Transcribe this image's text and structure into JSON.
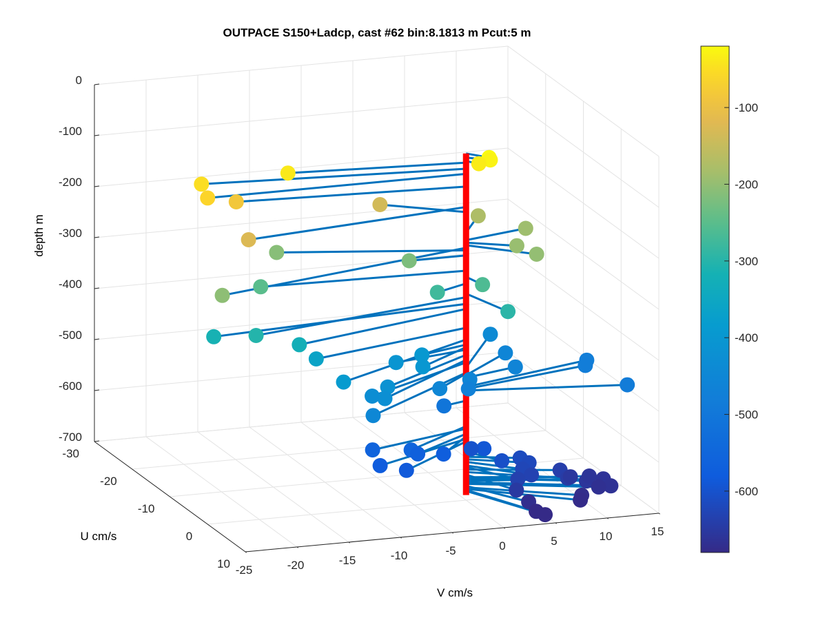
{
  "chart_data": {
    "type": "scatter",
    "subtype": "3d-stem-quiver",
    "title": "OUTPACE S150+Ladcp, cast #62 bin:8.1813 m  Pcut:5 m",
    "xlabel": "V cm/s",
    "ylabel": "U cm/s",
    "zlabel": "depth m",
    "x_ticks": [
      "-25",
      "-20",
      "-15",
      "-10",
      "-5",
      "0",
      "5",
      "10",
      "15"
    ],
    "y_ticks": [
      "-30",
      "-20",
      "-10",
      "0",
      "10"
    ],
    "z_ticks": [
      "0",
      "-100",
      "-200",
      "-300",
      "-400",
      "-500",
      "-600",
      "-700"
    ],
    "xlim": [
      -25,
      15
    ],
    "ylim": [
      -30,
      10
    ],
    "zlim": [
      -700,
      0
    ],
    "grid": true,
    "colorbar": {
      "colormap": "parula",
      "range": [
        -680,
        -20
      ],
      "ticks": [
        "-100",
        "-200",
        "-300",
        "-400",
        "-500",
        "-600"
      ]
    },
    "axis_line_color": "#ff0000",
    "stem_color": "#0072bd",
    "series": [
      {
        "values": [
          {
            "z": -20,
            "v": 1.5,
            "u": 2.0
          },
          {
            "z": -28,
            "v": 1.8,
            "u": 1.5
          },
          {
            "z": -35,
            "v": 0.8,
            "u": 1.2
          },
          {
            "z": -38,
            "v": -16.5,
            "u": -2.0
          },
          {
            "z": -50,
            "v": -24.5,
            "u": -3.0
          },
          {
            "z": -60,
            "v": -25.0,
            "u": 0.0
          },
          {
            "z": -85,
            "v": -21.5,
            "u": -2.0
          },
          {
            "z": -125,
            "v": -22.5,
            "u": 4.0
          },
          {
            "z": -135,
            "v": -6.5,
            "u": -5.0
          },
          {
            "z": -175,
            "v": 3.0,
            "u": -5.0
          },
          {
            "z": -190,
            "v": 6.5,
            "u": -2.0
          },
          {
            "z": -195,
            "v": 4.0,
            "u": 2.5
          },
          {
            "z": -200,
            "v": 5.0,
            "u": 5.0
          },
          {
            "z": -205,
            "v": -26.5,
            "u": 8.0
          },
          {
            "z": -210,
            "v": -16.5,
            "u": -5.0
          },
          {
            "z": -220,
            "v": -5.5,
            "u": 0.0
          },
          {
            "z": -250,
            "v": -19.5,
            "u": -1.0
          },
          {
            "z": -262,
            "v": 0.5,
            "u": 3.0
          },
          {
            "z": -275,
            "v": -3.5,
            "u": 2.0
          },
          {
            "z": -295,
            "v": 1.5,
            "u": 7.0
          },
          {
            "z": -302,
            "v": -22.5,
            "u": 6.0
          },
          {
            "z": -315,
            "v": -25.5,
            "u": 3.0
          },
          {
            "z": -325,
            "v": -18.5,
            "u": 6.5
          },
          {
            "z": -362,
            "v": -16.5,
            "u": 5.5
          },
          {
            "z": -385,
            "v": -15.5,
            "u": 10.0
          },
          {
            "z": -395,
            "v": -5.0,
            "u": 2.0
          },
          {
            "z": -400,
            "v": -6.0,
            "u": 5.0
          },
          {
            "z": -405,
            "v": -7.5,
            "u": 2.0
          },
          {
            "z": -415,
            "v": -10.5,
            "u": 8.0
          },
          {
            "z": -425,
            "v": -11.5,
            "u": 10.0
          },
          {
            "z": -430,
            "v": -12.0,
            "u": 8.0
          },
          {
            "z": -440,
            "v": 6.0,
            "u": -10.0
          },
          {
            "z": -450,
            "v": -13.0,
            "u": 11.0
          },
          {
            "z": -452,
            "v": -4.0,
            "u": 4.0
          },
          {
            "z": -455,
            "v": 6.0,
            "u": -6.0
          },
          {
            "z": -458,
            "v": 0.0,
            "u": 1.0
          },
          {
            "z": -460,
            "v": 5.5,
            "u": -2.0
          },
          {
            "z": -470,
            "v": -0.5,
            "u": 2.0
          },
          {
            "z": -478,
            "v": 13.5,
            "u": -5.0
          },
          {
            "z": -482,
            "v": 13.0,
            "u": -4.0
          },
          {
            "z": -485,
            "v": 14.5,
            "u": 3.0
          },
          {
            "z": -505,
            "v": -2.5,
            "u": 1.0
          },
          {
            "z": -555,
            "v": -7.5,
            "u": 6.0
          },
          {
            "z": -560,
            "v": -10.5,
            "u": 4.0
          },
          {
            "z": -570,
            "v": -6.5,
            "u": 5.0
          },
          {
            "z": -575,
            "v": -4.0,
            "u": 5.0
          },
          {
            "z": -580,
            "v": -10.5,
            "u": 6.0
          },
          {
            "z": -585,
            "v": -8.5,
            "u": 7.5
          },
          {
            "z": -590,
            "v": 1.0,
            "u": 2.0
          },
          {
            "z": -600,
            "v": 0.5,
            "u": 0.0
          },
          {
            "z": -605,
            "v": 2.0,
            "u": 4.0
          },
          {
            "z": -615,
            "v": 4.5,
            "u": 2.0
          },
          {
            "z": -620,
            "v": 5.0,
            "u": 3.0
          },
          {
            "z": -625,
            "v": 4.0,
            "u": 4.0
          },
          {
            "z": -632,
            "v": 4.5,
            "u": 5.0
          },
          {
            "z": -635,
            "v": 3.0,
            "u": 5.5
          },
          {
            "z": -640,
            "v": 8.0,
            "u": 3.0
          },
          {
            "z": -645,
            "v": 8.0,
            "u": 5.0
          },
          {
            "z": -650,
            "v": 2.5,
            "u": 6.5
          },
          {
            "z": -655,
            "v": 9.0,
            "u": 3.0
          },
          {
            "z": -657,
            "v": 10.0,
            "u": 4.5
          },
          {
            "z": -660,
            "v": 11.0,
            "u": 2.5
          },
          {
            "z": -662,
            "v": 12.0,
            "u": 3.5
          },
          {
            "z": -665,
            "v": 12.0,
            "u": 5.5
          },
          {
            "z": -668,
            "v": 11.0,
            "u": 5.0
          },
          {
            "z": -672,
            "v": 3.5,
            "u": 7.0
          },
          {
            "z": -675,
            "v": 9.0,
            "u": 6.0
          },
          {
            "z": -678,
            "v": 8.5,
            "u": 7.0
          },
          {
            "z": -680,
            "v": 3.5,
            "u": 9.0
          },
          {
            "z": -682,
            "v": 4.0,
            "u": 10.0
          }
        ]
      }
    ]
  }
}
